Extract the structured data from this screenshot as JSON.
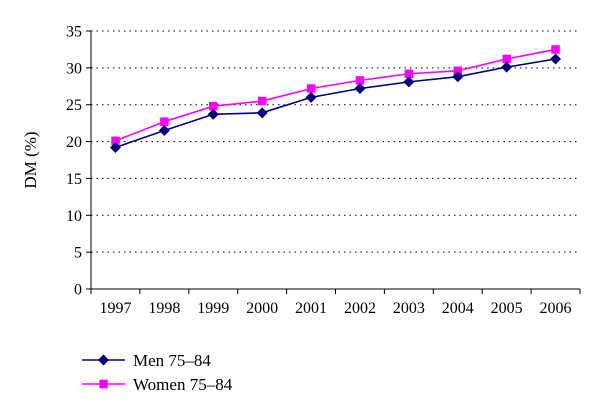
{
  "chart_data": {
    "type": "line",
    "title": "",
    "xlabel": "",
    "ylabel": "DM (%)",
    "categories": [
      "1997",
      "1998",
      "1999",
      "2000",
      "2001",
      "2002",
      "2003",
      "2004",
      "2005",
      "2006"
    ],
    "ylim": [
      0,
      35
    ],
    "yticks": [
      "0",
      "5",
      "10",
      "15",
      "20",
      "25",
      "30",
      "35"
    ],
    "grid": "horizontal dotted",
    "legend_position": "bottom-left",
    "series": [
      {
        "name": "Men 75–84",
        "color": "#00007f",
        "marker": "diamond",
        "values": [
          19.2,
          21.5,
          23.7,
          23.9,
          26.0,
          27.2,
          28.1,
          28.8,
          30.1,
          31.2
        ]
      },
      {
        "name": "Women 75–84",
        "color": "#ff00ff",
        "marker": "square",
        "values": [
          20.1,
          22.7,
          24.8,
          25.5,
          27.2,
          28.3,
          29.2,
          29.6,
          31.2,
          32.5
        ]
      }
    ]
  }
}
